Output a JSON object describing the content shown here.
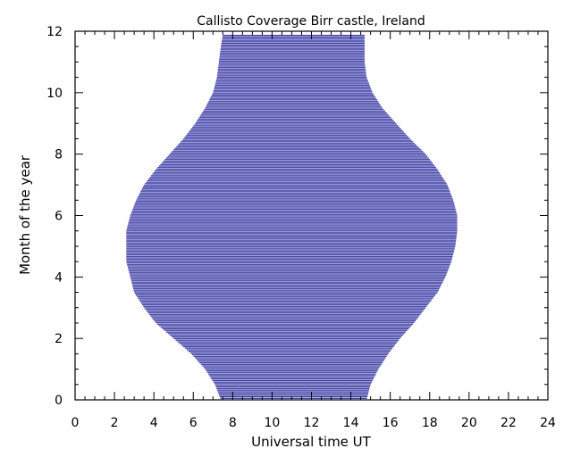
{
  "chart_data": {
    "type": "area",
    "title": "Callisto Coverage Birr castle, Ireland",
    "xlabel": "Universal time UT",
    "ylabel": "Month of the year",
    "xlim": [
      0,
      24
    ],
    "ylim": [
      0,
      12
    ],
    "xticks": [
      "0",
      "2",
      "4",
      "6",
      "8",
      "10",
      "12",
      "14",
      "16",
      "18",
      "20",
      "22",
      "24"
    ],
    "yticks": [
      "0",
      "2",
      "4",
      "6",
      "8",
      "10",
      "12"
    ],
    "fill_color": "#00008b",
    "fill_style": "horizontal lines",
    "series": [
      {
        "month": [
          0.0,
          0.5,
          1.0,
          1.5,
          2.0,
          2.5,
          3.0,
          3.5,
          4.0,
          4.5,
          5.0,
          5.5,
          6.0,
          6.5,
          7.0,
          7.5,
          8.0,
          8.5,
          9.0,
          9.5,
          10.0,
          10.5,
          11.0,
          11.5,
          11.9
        ],
        "start_ut": [
          7.4,
          7.1,
          6.6,
          5.9,
          5.0,
          4.1,
          3.5,
          3.0,
          2.8,
          2.6,
          2.6,
          2.6,
          2.8,
          3.1,
          3.5,
          4.1,
          4.8,
          5.5,
          6.1,
          6.6,
          7.0,
          7.2,
          7.3,
          7.4,
          7.5
        ],
        "end_ut": [
          14.8,
          15.0,
          15.4,
          15.9,
          16.5,
          17.2,
          17.8,
          18.4,
          18.8,
          19.1,
          19.3,
          19.4,
          19.4,
          19.2,
          18.9,
          18.4,
          17.8,
          17.0,
          16.3,
          15.6,
          15.1,
          14.8,
          14.7,
          14.7,
          14.7
        ]
      }
    ]
  }
}
